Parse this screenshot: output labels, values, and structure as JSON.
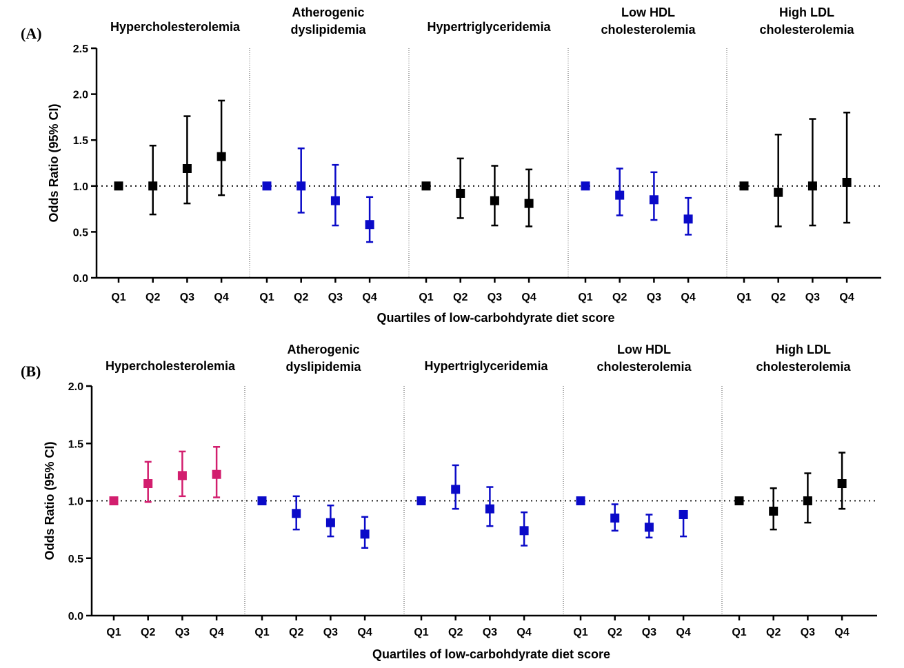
{
  "colors": {
    "black": "#000000",
    "blue": "#0a0ac8",
    "pink": "#d21e6e"
  },
  "chart_data": [
    {
      "panel": "(A)",
      "type": "scatter",
      "ylabel": "Odds Ratio  (95% CI)",
      "xlabel": "Quartiles of low-carbohdyrate diet score",
      "ylim": [
        0,
        2.5
      ],
      "yticks": [
        "0.0",
        "0.5",
        "1.0",
        "1.5",
        "2.0",
        "2.5"
      ],
      "reference_line": 1.0,
      "groups": [
        {
          "title": [
            "Hypercholesterolemia"
          ],
          "color": "black",
          "points": [
            {
              "label": "Q1",
              "or": 1.0,
              "lo": 1.0,
              "hi": 1.0
            },
            {
              "label": "Q2",
              "or": 1.0,
              "lo": 0.69,
              "hi": 1.44
            },
            {
              "label": "Q3",
              "or": 1.19,
              "lo": 0.81,
              "hi": 1.76
            },
            {
              "label": "Q4",
              "or": 1.32,
              "lo": 0.9,
              "hi": 1.93
            }
          ]
        },
        {
          "title": [
            "Atherogenic",
            "dyslipidemia"
          ],
          "color": "blue",
          "points": [
            {
              "label": "Q1",
              "or": 1.0,
              "lo": 1.0,
              "hi": 1.0
            },
            {
              "label": "Q2",
              "or": 1.0,
              "lo": 0.71,
              "hi": 1.41
            },
            {
              "label": "Q3",
              "or": 0.84,
              "lo": 0.57,
              "hi": 1.23
            },
            {
              "label": "Q4",
              "or": 0.58,
              "lo": 0.39,
              "hi": 0.88
            }
          ]
        },
        {
          "title": [
            "Hypertriglyceridemia"
          ],
          "color": "black",
          "points": [
            {
              "label": "Q1",
              "or": 1.0,
              "lo": 1.0,
              "hi": 1.0
            },
            {
              "label": "Q2",
              "or": 0.92,
              "lo": 0.65,
              "hi": 1.3
            },
            {
              "label": "Q3",
              "or": 0.84,
              "lo": 0.57,
              "hi": 1.22
            },
            {
              "label": "Q4",
              "or": 0.81,
              "lo": 0.56,
              "hi": 1.18
            }
          ]
        },
        {
          "title": [
            "Low HDL",
            "cholesterolemia"
          ],
          "color": "blue",
          "points": [
            {
              "label": "Q1",
              "or": 1.0,
              "lo": 1.0,
              "hi": 1.0
            },
            {
              "label": "Q2",
              "or": 0.9,
              "lo": 0.68,
              "hi": 1.19
            },
            {
              "label": "Q3",
              "or": 0.85,
              "lo": 0.63,
              "hi": 1.15
            },
            {
              "label": "Q4",
              "or": 0.64,
              "lo": 0.47,
              "hi": 0.87
            }
          ]
        },
        {
          "title": [
            "High LDL",
            "cholesterolemia"
          ],
          "color": "black",
          "points": [
            {
              "label": "Q1",
              "or": 1.0,
              "lo": 1.0,
              "hi": 1.0
            },
            {
              "label": "Q2",
              "or": 0.93,
              "lo": 0.56,
              "hi": 1.56
            },
            {
              "label": "Q3",
              "or": 1.0,
              "lo": 0.57,
              "hi": 1.73
            },
            {
              "label": "Q4",
              "or": 1.04,
              "lo": 0.6,
              "hi": 1.8
            }
          ]
        }
      ]
    },
    {
      "panel": "(B)",
      "type": "scatter",
      "ylabel": "Odds Ratio  (95% CI)",
      "xlabel": "Quartiles of low-carbohdyrate diet score",
      "ylim": [
        0,
        2.0
      ],
      "yticks": [
        "0.0",
        "0.5",
        "1.0",
        "1.5",
        "2.0"
      ],
      "reference_line": 1.0,
      "groups": [
        {
          "title": [
            "Hypercholesterolemia"
          ],
          "color": "pink",
          "points": [
            {
              "label": "Q1",
              "or": 1.0,
              "lo": 1.0,
              "hi": 1.0
            },
            {
              "label": "Q2",
              "or": 1.15,
              "lo": 0.99,
              "hi": 1.34
            },
            {
              "label": "Q3",
              "or": 1.22,
              "lo": 1.04,
              "hi": 1.43
            },
            {
              "label": "Q4",
              "or": 1.23,
              "lo": 1.03,
              "hi": 1.47
            }
          ]
        },
        {
          "title": [
            "Atherogenic",
            "dyslipidemia"
          ],
          "color": "blue",
          "points": [
            {
              "label": "Q1",
              "or": 1.0,
              "lo": 1.0,
              "hi": 1.0
            },
            {
              "label": "Q2",
              "or": 0.89,
              "lo": 0.75,
              "hi": 1.04
            },
            {
              "label": "Q3",
              "or": 0.81,
              "lo": 0.69,
              "hi": 0.96
            },
            {
              "label": "Q4",
              "or": 0.71,
              "lo": 0.59,
              "hi": 0.86
            }
          ]
        },
        {
          "title": [
            "Hypertriglyceridemia"
          ],
          "color": "blue",
          "points": [
            {
              "label": "Q1",
              "or": 1.0,
              "lo": 1.0,
              "hi": 1.0
            },
            {
              "label": "Q2",
              "or": 1.1,
              "lo": 0.93,
              "hi": 1.31
            },
            {
              "label": "Q3",
              "or": 0.93,
              "lo": 0.78,
              "hi": 1.12
            },
            {
              "label": "Q4",
              "or": 0.74,
              "lo": 0.61,
              "hi": 0.9
            }
          ]
        },
        {
          "title": [
            "Low HDL",
            "cholesterolemia"
          ],
          "color": "blue",
          "points": [
            {
              "label": "Q1",
              "or": 1.0,
              "lo": 1.0,
              "hi": 1.0
            },
            {
              "label": "Q2",
              "or": 0.85,
              "lo": 0.74,
              "hi": 0.97
            },
            {
              "label": "Q3",
              "or": 0.77,
              "lo": 0.68,
              "hi": 0.88
            },
            {
              "label": "Q4",
              "or": 0.88,
              "lo": 0.69,
              "hi": 0.91
            }
          ]
        },
        {
          "title": [
            "High LDL",
            "cholesterolemia"
          ],
          "color": "black",
          "points": [
            {
              "label": "Q1",
              "or": 1.0,
              "lo": 1.0,
              "hi": 1.0
            },
            {
              "label": "Q2",
              "or": 0.91,
              "lo": 0.75,
              "hi": 1.11
            },
            {
              "label": "Q3",
              "or": 1.0,
              "lo": 0.81,
              "hi": 1.24
            },
            {
              "label": "Q4",
              "or": 1.15,
              "lo": 0.93,
              "hi": 1.42
            }
          ]
        }
      ]
    }
  ]
}
